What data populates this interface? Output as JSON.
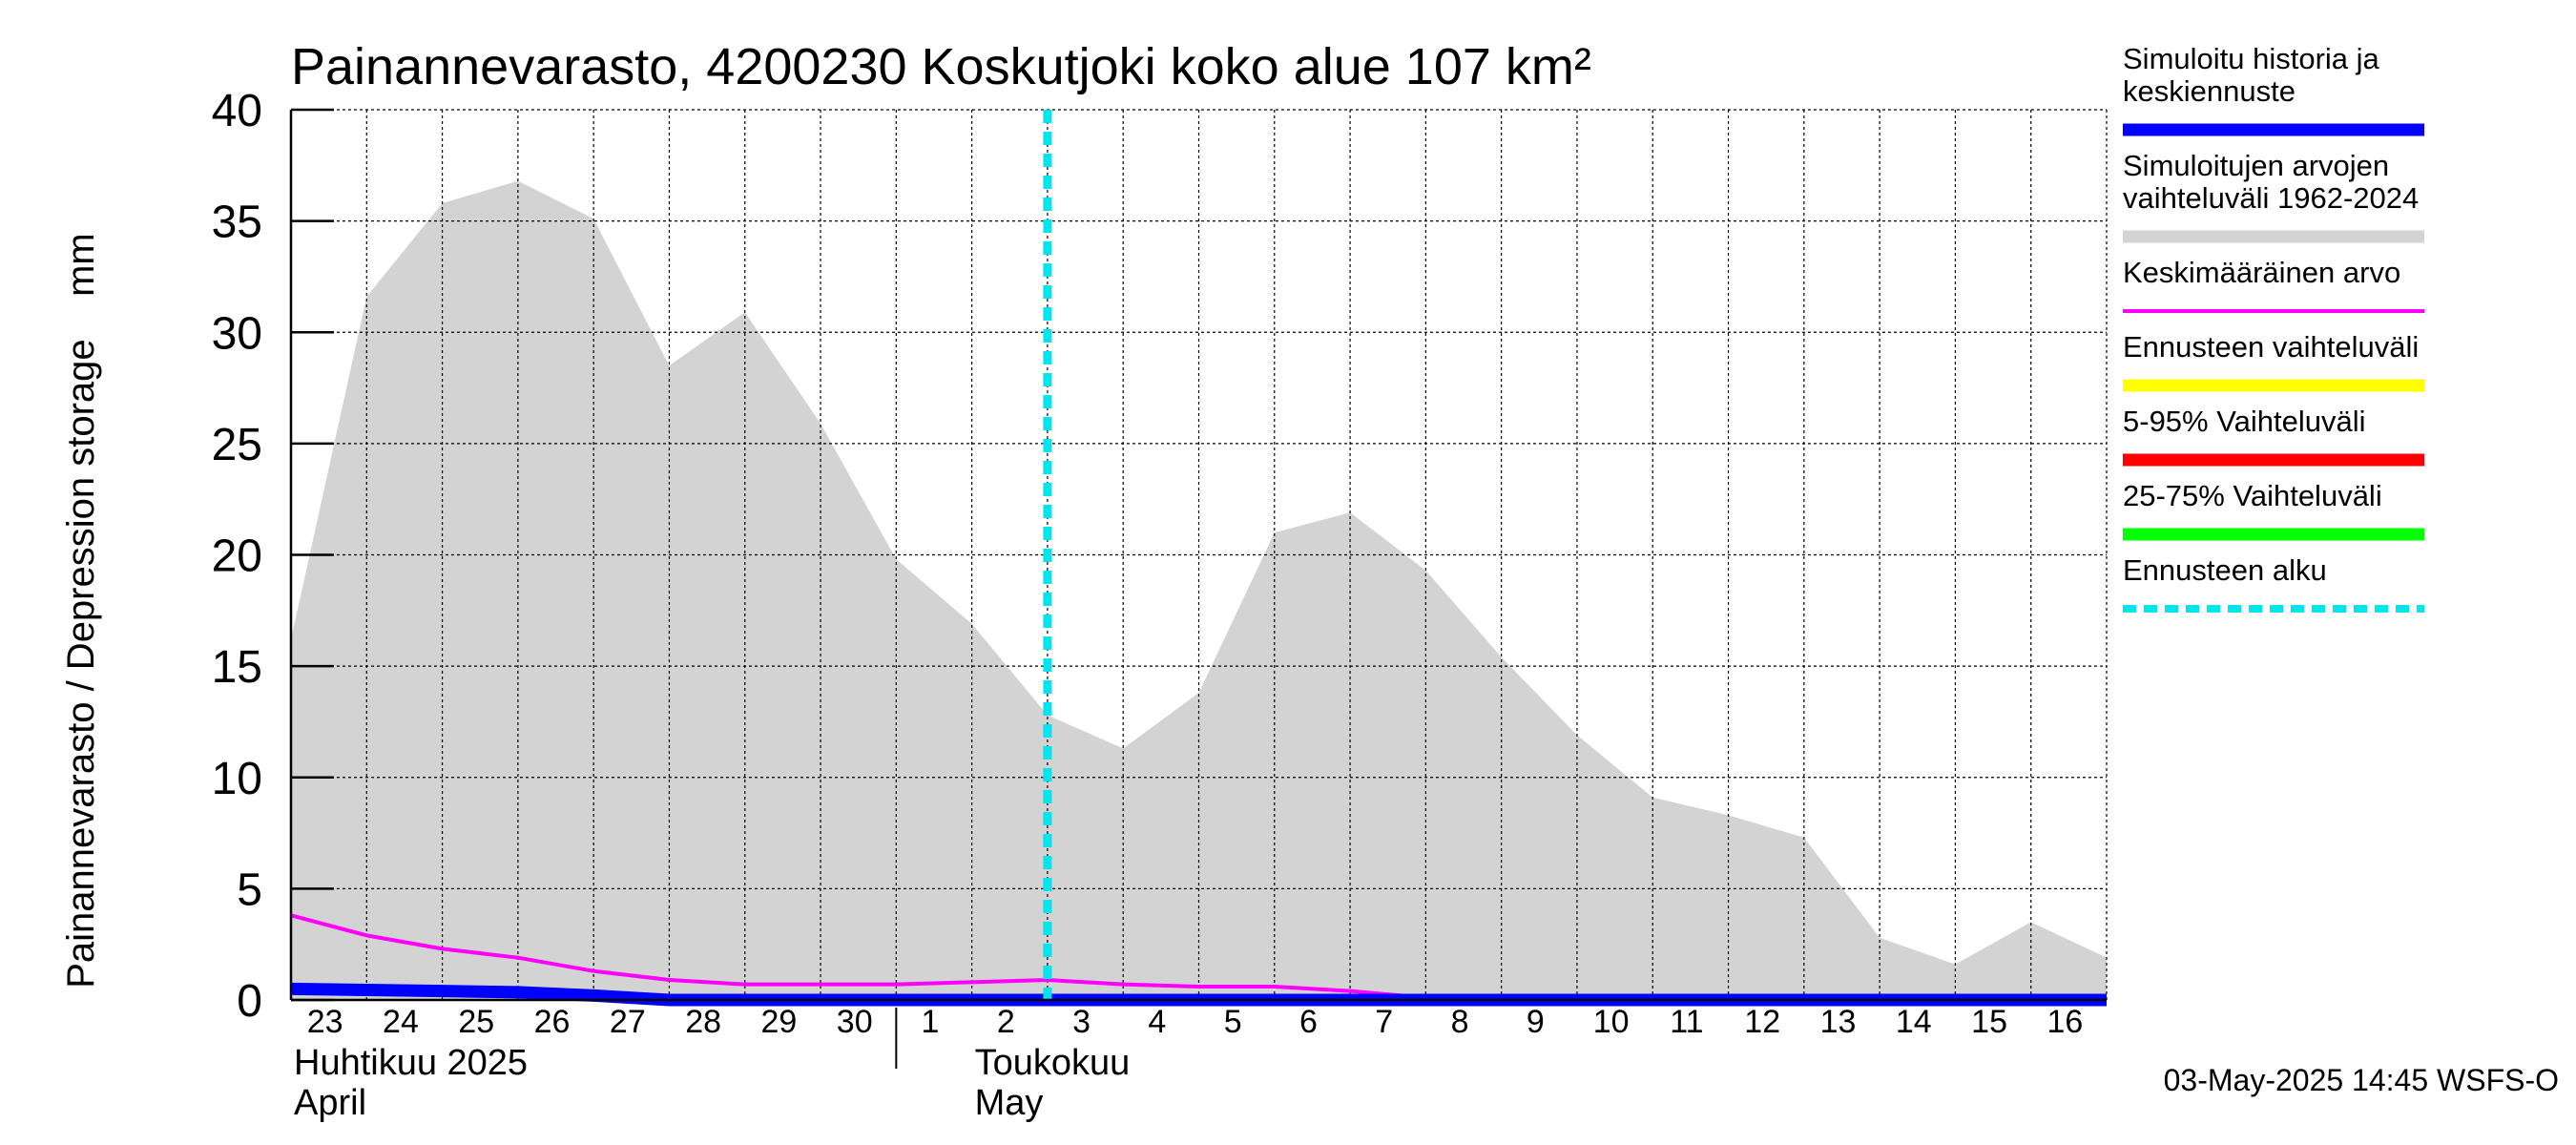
{
  "chart_data": {
    "type": "area",
    "title": "Painannevarasto, 4200230 Koskutjoki koko alue 107 km²",
    "ylabel": "Painannevarasto / Depression storage    mm",
    "ylim": [
      0,
      40
    ],
    "yticks": [
      "0",
      "5",
      "10",
      "15",
      "20",
      "25",
      "30",
      "35",
      "40"
    ],
    "xlim": [
      0,
      24
    ],
    "xtick_labels": [
      "23",
      "24",
      "25",
      "26",
      "27",
      "28",
      "29",
      "30",
      "1",
      "2",
      "3",
      "4",
      "5",
      "6",
      "7",
      "8",
      "9",
      "10",
      "11",
      "12",
      "13",
      "14",
      "15",
      "16"
    ],
    "month_labels": [
      {
        "fi": "Huhtikuu  2025",
        "en": "April"
      },
      {
        "fi": "Toukokuu",
        "en": "May"
      }
    ],
    "grid": true,
    "legend_placement": "right",
    "forecast_start_x": 10,
    "series": [
      {
        "name": "Simuloitujen arvojen vaihteluväli 1962-2024",
        "kind": "band",
        "color": "#d3d3d3",
        "x": [
          0,
          1,
          2,
          3,
          4,
          5,
          6,
          7,
          8,
          9,
          10,
          11,
          12,
          13,
          14,
          15,
          16,
          17,
          18,
          19,
          20,
          21,
          22,
          23,
          24
        ],
        "upper": [
          16.2,
          31.6,
          35.8,
          36.8,
          35.1,
          28.5,
          30.9,
          25.9,
          19.8,
          16.9,
          12.8,
          11.3,
          13.8,
          21.0,
          21.9,
          19.3,
          15.4,
          11.9,
          9.1,
          8.3,
          7.3,
          2.8,
          1.6,
          3.5,
          1.9
        ],
        "lower": [
          0,
          0,
          0,
          0,
          0,
          0,
          0,
          0,
          0,
          0,
          0,
          0,
          0,
          0,
          0,
          0,
          0,
          0,
          0,
          0,
          0,
          0,
          0,
          0,
          0
        ]
      },
      {
        "name": "Keskimääräinen arvo",
        "kind": "line",
        "color": "#ff00ff",
        "x": [
          0,
          1,
          2,
          3,
          4,
          5,
          6,
          7,
          8,
          9,
          10,
          11,
          12,
          13,
          14,
          15,
          16,
          17,
          18,
          19,
          20,
          21,
          22,
          23,
          24
        ],
        "values": [
          3.8,
          2.9,
          2.3,
          1.9,
          1.3,
          0.9,
          0.7,
          0.7,
          0.7,
          0.8,
          0.9,
          0.7,
          0.6,
          0.6,
          0.4,
          0.1,
          0.0,
          0.0,
          0.0,
          0.0,
          0.0,
          0.0,
          0.0,
          0.0,
          0.0
        ]
      },
      {
        "name": "Simuloitu historia ja keskiennuste",
        "kind": "line",
        "color": "#0000ff",
        "x": [
          0,
          1,
          2,
          3,
          4,
          5,
          6,
          7,
          8,
          9,
          10,
          11,
          12,
          13,
          14,
          15,
          16,
          17,
          18,
          19,
          20,
          21,
          22,
          23,
          24
        ],
        "values": [
          0.5,
          0.45,
          0.4,
          0.35,
          0.2,
          0.0,
          0.0,
          0.0,
          0.0,
          0.0,
          0.0,
          0.0,
          0.0,
          0.0,
          0.0,
          0.0,
          0.0,
          0.0,
          0.0,
          0.0,
          0.0,
          0.0,
          0.0,
          0.0,
          0.0
        ]
      }
    ]
  },
  "legend": [
    {
      "label": "Simuloitu historia ja keskiennuste",
      "color": "#0000ff",
      "style": "thick"
    },
    {
      "label": "Simuloitujen arvojen vaihteluväli 1962-2024",
      "color": "#d3d3d3",
      "style": "thick"
    },
    {
      "label": "Keskimääräinen arvo",
      "color": "#ff00ff",
      "style": "thin"
    },
    {
      "label": "Ennusteen vaihteluväli",
      "color": "#ffff00",
      "style": "thick"
    },
    {
      "label": "5-95% Vaihteluväli",
      "color": "#ff0000",
      "style": "thick"
    },
    {
      "label": "25-75% Vaihteluväli",
      "color": "#00ff00",
      "style": "thick"
    },
    {
      "label": "Ennusteen alku",
      "color": "#00e5ee",
      "style": "dashed"
    }
  ],
  "timestamp": "03-May-2025 14:45 WSFS-O"
}
